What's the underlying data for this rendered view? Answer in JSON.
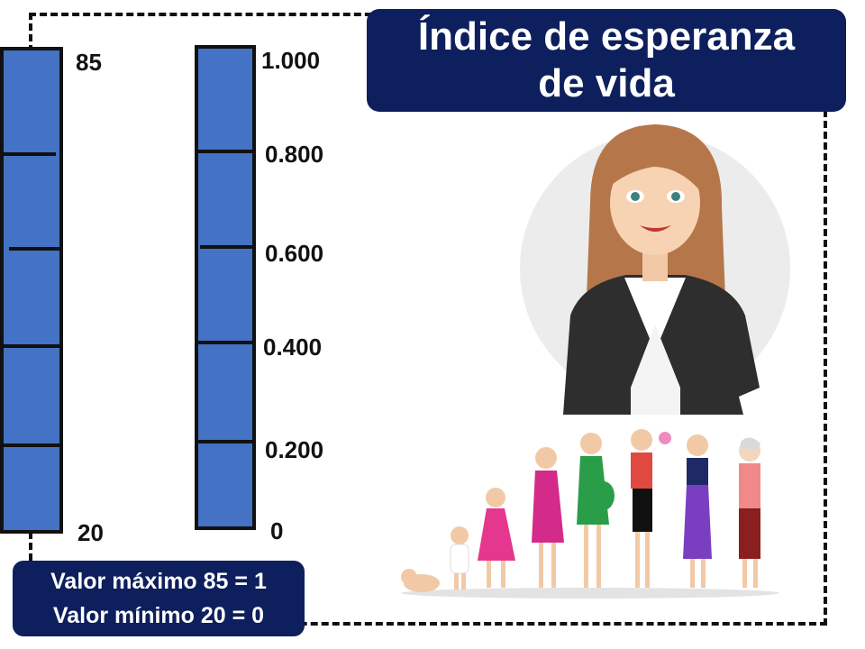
{
  "title": {
    "line1": "Índice de esperanza",
    "line2": "de vida"
  },
  "scales": {
    "years": {
      "top": "85",
      "bottom": "20"
    },
    "index": [
      "1.000",
      "0.800",
      "0.600",
      "0.400",
      "0.200",
      "0"
    ]
  },
  "info": {
    "max_line": "Valor máximo 85 = 1",
    "min_line": "Valor mínimo 20 = 0"
  },
  "colors": {
    "bar": "#4472c4",
    "box": "#0d1f5c"
  },
  "illustrations": [
    "woman-avatar",
    "life-stages-women"
  ]
}
